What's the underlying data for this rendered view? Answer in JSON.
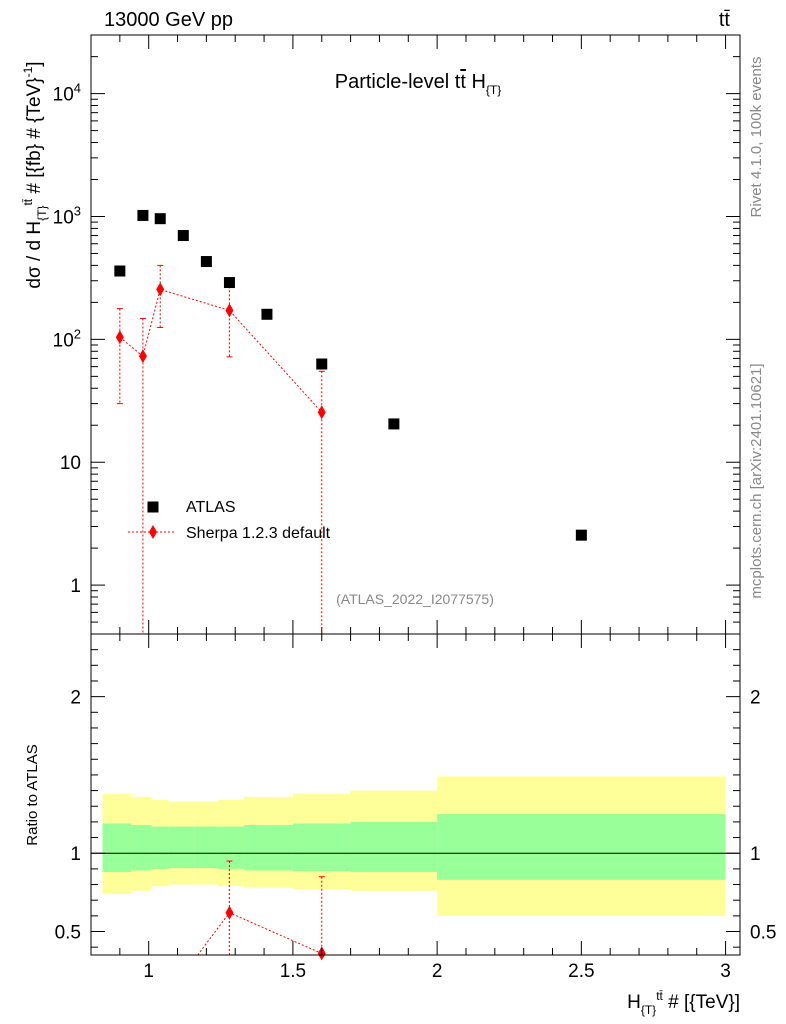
{
  "header": {
    "energy_label": "13000 GeV pp",
    "process_label": "tt̄"
  },
  "side_labels": {
    "rivet": "Rivet 4.1.0,  100k events",
    "mcplots": "mcplots.cern.ch [arXiv:2401.10621]"
  },
  "chart_data": [
    {
      "type": "scatter",
      "title": "Particle-level tt̄  H{T}",
      "analysis_label": "(ATLAS_2022_I2077575)",
      "ylabel": "dσ / d H{T}tt̄ # [{fb} # {TeV}-1]",
      "xlabel": "",
      "yscale": "log",
      "xlim": [
        0.8,
        3.05
      ],
      "ylim": [
        0.4,
        30000
      ],
      "y_ticks": [
        {
          "value": 1,
          "label": "1"
        },
        {
          "value": 10,
          "label": "10"
        },
        {
          "value": 100,
          "label": "10^2"
        },
        {
          "value": 1000,
          "label": "10^3"
        },
        {
          "value": 10000,
          "label": "10^4"
        }
      ],
      "legend": {
        "position": "lower-left",
        "entries": [
          "ATLAS",
          "Sherpa 1.2.3 default"
        ]
      },
      "series": [
        {
          "name": "ATLAS",
          "color": "#000000",
          "marker": "square",
          "x": [
            0.9,
            0.98,
            1.04,
            1.12,
            1.2,
            1.28,
            1.41,
            1.6,
            1.85,
            2.5
          ],
          "y": [
            360,
            1020,
            960,
            700,
            430,
            290,
            160,
            63,
            20.5,
            2.55
          ]
        },
        {
          "name": "Sherpa 1.2.3 default",
          "color": "#ff0000",
          "marker": "diamond",
          "x": [
            0.9,
            0.98,
            1.04,
            1.28,
            1.6
          ],
          "y": [
            104,
            73,
            255,
            172,
            25.5
          ],
          "y_low": [
            30,
            0.3,
            125,
            72,
            0.3
          ],
          "y_high": [
            178,
            148,
            400,
            270,
            55
          ]
        }
      ]
    },
    {
      "type": "line",
      "ylabel": "Ratio to ATLAS",
      "xlabel": "H{T}tt̄ # [{TeV}]",
      "xlim": [
        0.8,
        3.05
      ],
      "ylim": [
        0.35,
        2.4
      ],
      "x_ticks": [
        {
          "value": 1,
          "label": "1"
        },
        {
          "value": 1.5,
          "label": "1.5"
        },
        {
          "value": 2,
          "label": "2"
        },
        {
          "value": 2.5,
          "label": "2.5"
        },
        {
          "value": 3,
          "label": "3"
        }
      ],
      "y_ticks": [
        {
          "value": 0.5,
          "label": "0.5"
        },
        {
          "value": 1,
          "label": "1"
        },
        {
          "value": 2,
          "label": "2"
        }
      ],
      "bands": {
        "edges": [
          0.84,
          0.94,
          1.01,
          1.07,
          1.16,
          1.24,
          1.33,
          1.5,
          1.7,
          2.0,
          3.0
        ],
        "yellow_low": [
          0.74,
          0.76,
          0.79,
          0.8,
          0.8,
          0.79,
          0.78,
          0.77,
          0.76,
          0.6
        ],
        "yellow_high": [
          1.38,
          1.36,
          1.34,
          1.33,
          1.33,
          1.34,
          1.36,
          1.38,
          1.4,
          1.49
        ],
        "green_low": [
          0.88,
          0.89,
          0.9,
          0.905,
          0.905,
          0.9,
          0.89,
          0.885,
          0.88,
          0.83
        ],
        "green_high": [
          1.19,
          1.18,
          1.17,
          1.17,
          1.17,
          1.17,
          1.18,
          1.19,
          1.2,
          1.25
        ]
      },
      "series": [
        {
          "name": "Sherpa 1.2.3 default",
          "color": "#ff0000",
          "x": [
            1.28,
            1.6
          ],
          "y": [
            0.62,
            0.36
          ],
          "y_high": [
            0.95,
            0.85
          ],
          "line_from": [
            1.17,
            0.3
          ]
        }
      ]
    }
  ]
}
